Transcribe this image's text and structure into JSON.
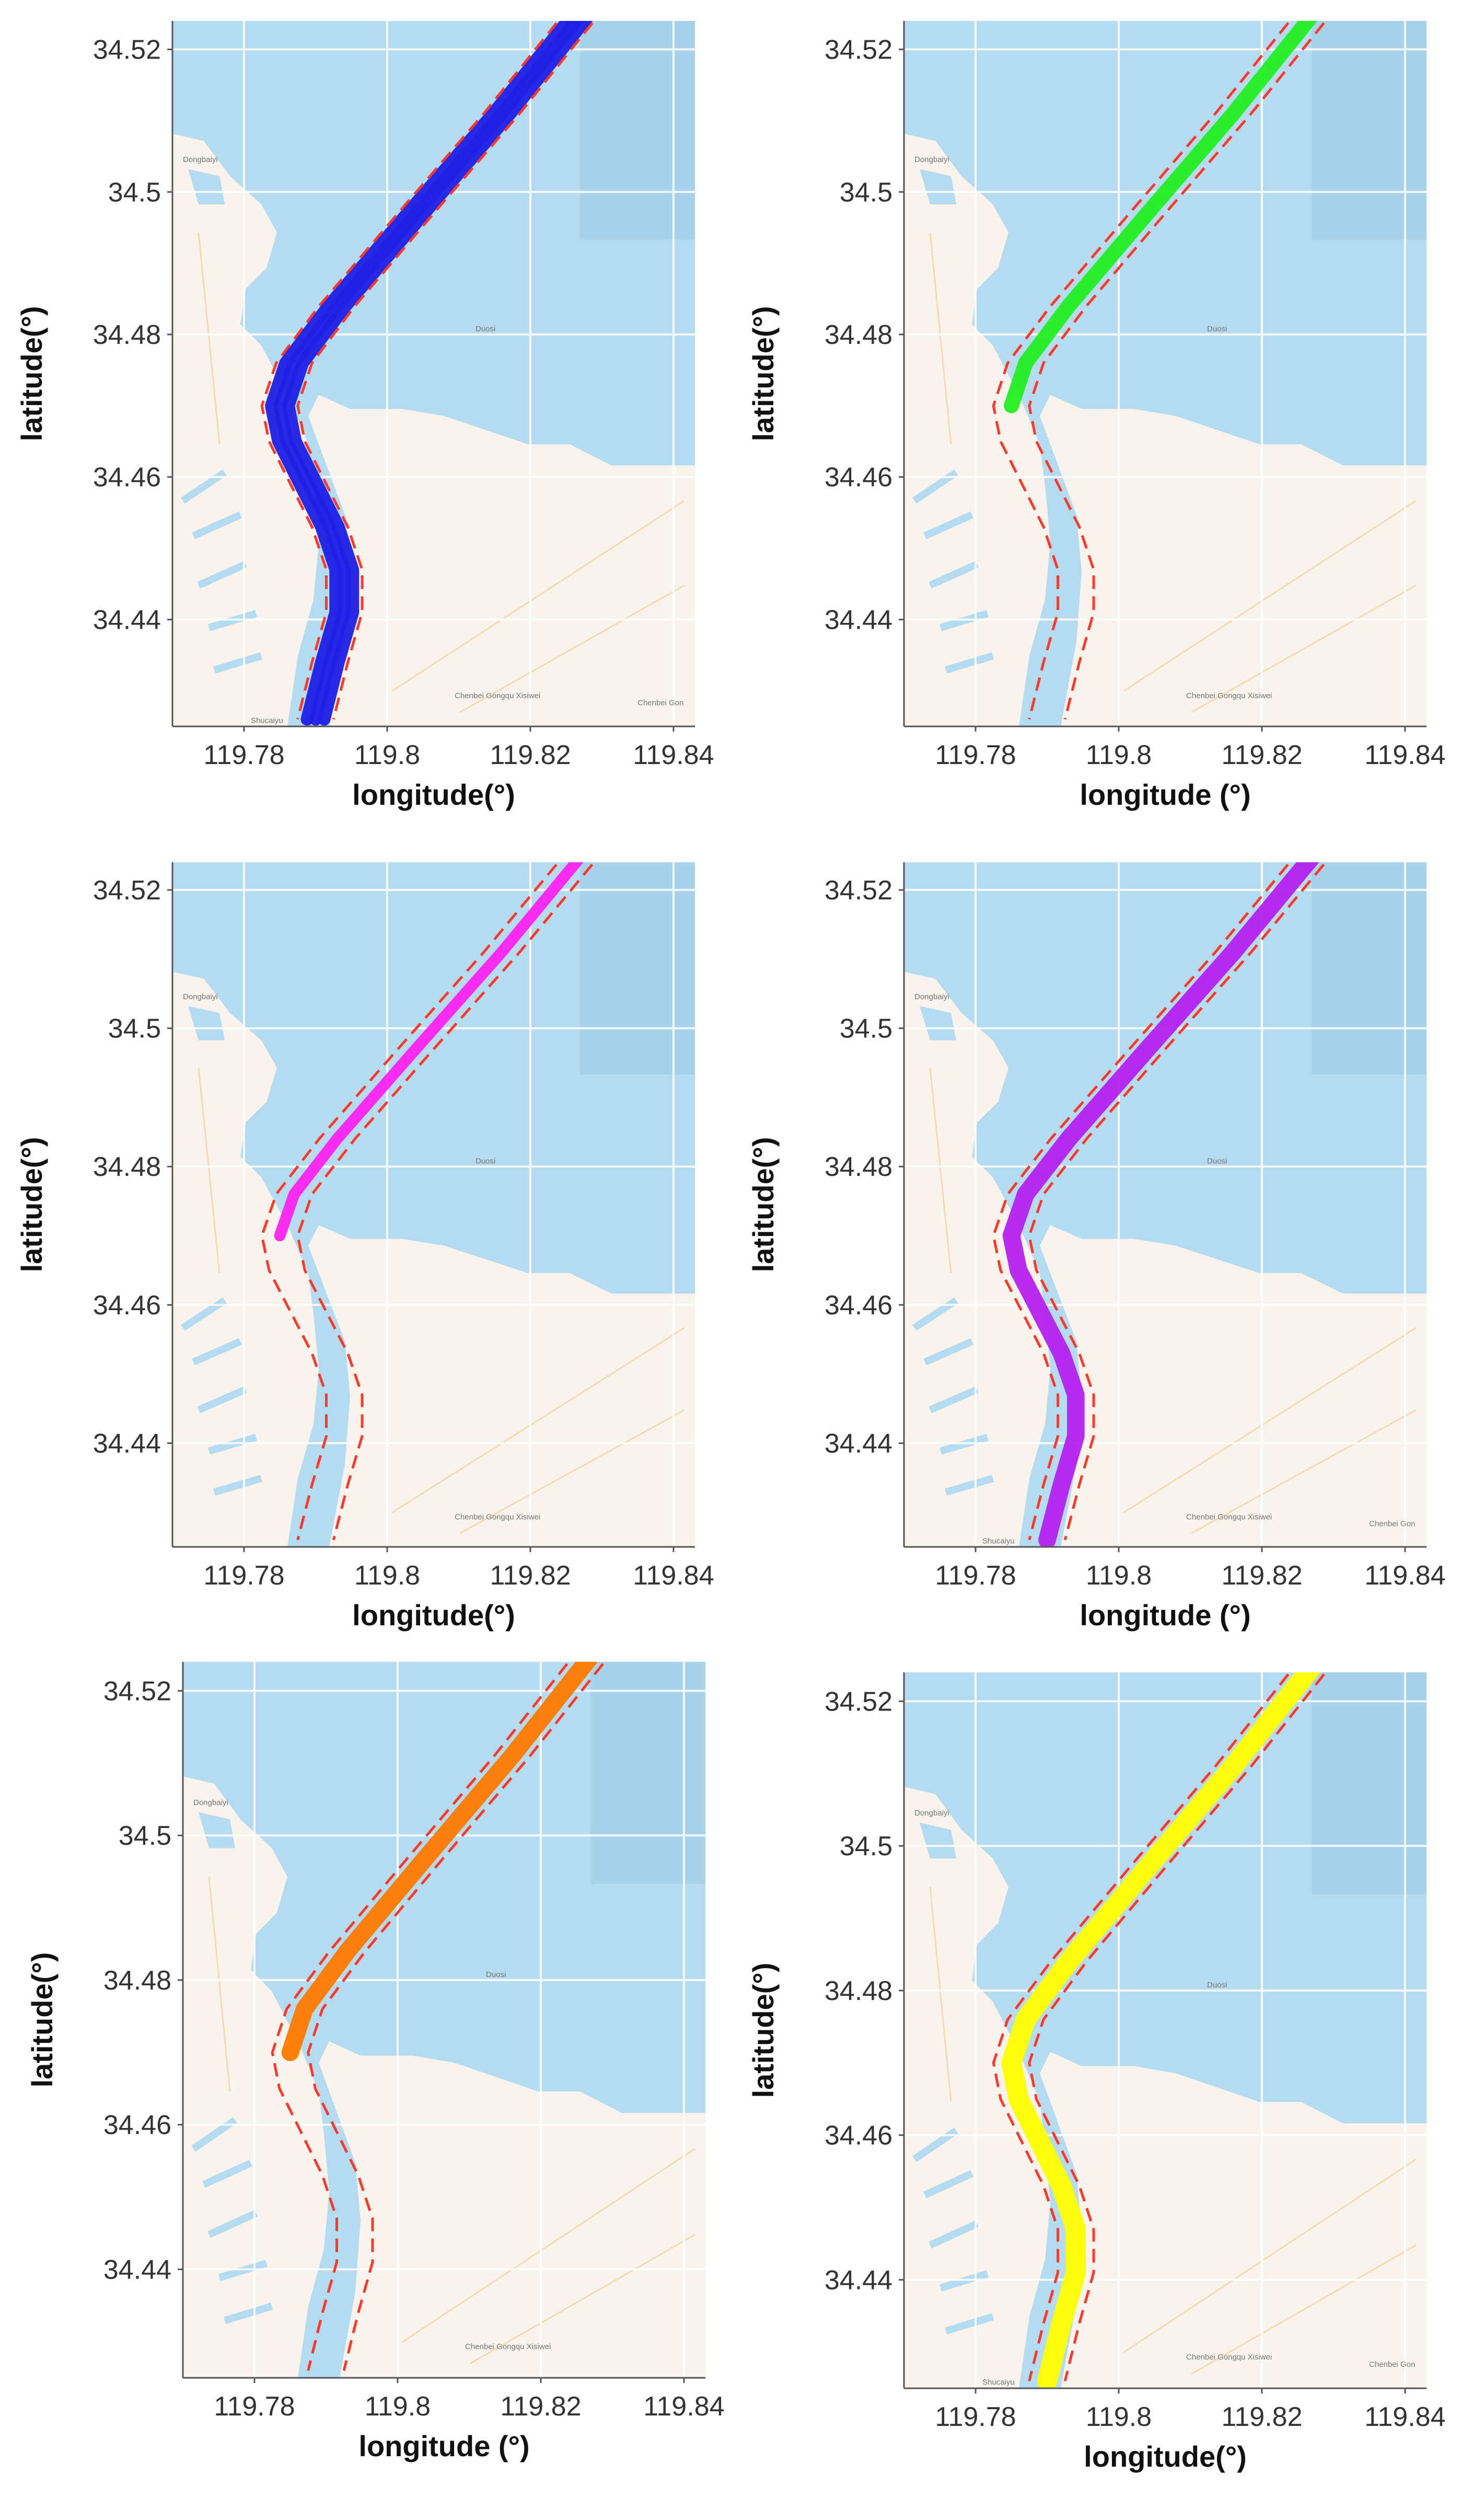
{
  "colors": {
    "water": "#b5dbf1",
    "water_dark": "#a7d2ea",
    "land": "#f8f3ec",
    "grid": "#ffffff",
    "channel_boundary": "#ff3a2a",
    "axis": "#555555",
    "tick_text": "#333333",
    "label_text": "#111111"
  },
  "map_labels": {
    "west_village": "Dongbaiyi",
    "center": "Duosi",
    "bottom": "Chenbei Gongqu Xisiwei",
    "bottom_left": "Shucaiyu",
    "bottom_right": "Chenbei Gon"
  },
  "chart_data": [
    {
      "type": "line",
      "panel": "top-left",
      "xlabel": "longitude(°)",
      "ylabel": "latitude(°)",
      "xticks": [
        "119.78",
        "119.8",
        "119.82",
        "119.84"
      ],
      "yticks": [
        "34.52",
        "34.5",
        "34.48",
        "34.46",
        "34.44"
      ],
      "xlim": [
        119.77,
        119.843
      ],
      "ylim": [
        34.425,
        34.524
      ],
      "track_color": "#1f1fe6",
      "track_extent": "full",
      "track_widths": [
        10
      ],
      "label_map": {
        "west_village": true,
        "center": true,
        "bottom": true,
        "bottom_left": true,
        "bottom_right": true
      }
    },
    {
      "type": "line",
      "panel": "top-right",
      "xlabel": "longitude (°)",
      "ylabel": "latitude(°)",
      "xticks": [
        "119.78",
        "119.8",
        "119.82",
        "119.84"
      ],
      "yticks": [
        "34.52",
        "34.5",
        "34.48",
        "34.46",
        "34.44"
      ],
      "xlim": [
        119.77,
        119.843
      ],
      "ylim": [
        34.425,
        34.524
      ],
      "track_color": "#22ee22",
      "track_extent": "north",
      "track_widths": [
        12
      ],
      "label_map": {
        "west_village": true,
        "center": true,
        "bottom": true,
        "bottom_left": false,
        "bottom_right": false
      }
    },
    {
      "type": "line",
      "panel": "middle-left",
      "xlabel": "longitude(°)",
      "ylabel": "latitude(°)",
      "xticks": [
        "119.78",
        "119.8",
        "119.82",
        "119.84"
      ],
      "yticks": [
        "34.52",
        "34.5",
        "34.48",
        "34.46",
        "34.44"
      ],
      "xlim": [
        119.77,
        119.843
      ],
      "ylim": [
        34.425,
        34.524
      ],
      "track_color": "#ff22ee",
      "track_extent": "north",
      "track_widths": [
        9
      ],
      "label_map": {
        "west_village": true,
        "center": true,
        "bottom": true,
        "bottom_left": false,
        "bottom_right": false
      }
    },
    {
      "type": "line",
      "panel": "middle-right",
      "xlabel": "longitude (°)",
      "ylabel": "latitude(°)",
      "xticks": [
        "119.78",
        "119.8",
        "119.82",
        "119.84"
      ],
      "yticks": [
        "34.52",
        "34.5",
        "34.48",
        "34.46",
        "34.44"
      ],
      "xlim": [
        119.77,
        119.843
      ],
      "ylim": [
        34.425,
        34.524
      ],
      "track_color": "#b521ee",
      "track_extent": "full",
      "track_widths": [
        14
      ],
      "label_map": {
        "west_village": true,
        "center": true,
        "bottom": true,
        "bottom_left": true,
        "bottom_right": true
      }
    },
    {
      "type": "line",
      "panel": "bottom-left",
      "xlabel": "longitude (°)",
      "ylabel": "latitude(°)",
      "xticks": [
        "119.78",
        "119.8",
        "119.82",
        "119.84"
      ],
      "yticks": [
        "34.52",
        "34.5",
        "34.48",
        "34.46",
        "34.44"
      ],
      "xlim": [
        119.77,
        119.843
      ],
      "ylim": [
        34.425,
        34.524
      ],
      "track_color": "#ff7a00",
      "track_extent": "north",
      "track_widths": [
        14
      ],
      "label_map": {
        "west_village": true,
        "center": true,
        "bottom": true,
        "bottom_left": false,
        "bottom_right": false
      }
    },
    {
      "type": "line",
      "panel": "bottom-right",
      "xlabel": "longitude(°)",
      "ylabel": "latitude(°)",
      "xticks": [
        "119.78",
        "119.8",
        "119.82",
        "119.84"
      ],
      "yticks": [
        "34.52",
        "34.5",
        "34.48",
        "34.46",
        "34.44"
      ],
      "xlim": [
        119.77,
        119.843
      ],
      "ylim": [
        34.425,
        34.524
      ],
      "track_color": "#ffff00",
      "track_extent": "full",
      "track_widths": [
        16
      ],
      "label_map": {
        "west_village": true,
        "center": true,
        "bottom": true,
        "bottom_left": true,
        "bottom_right": true
      }
    }
  ]
}
